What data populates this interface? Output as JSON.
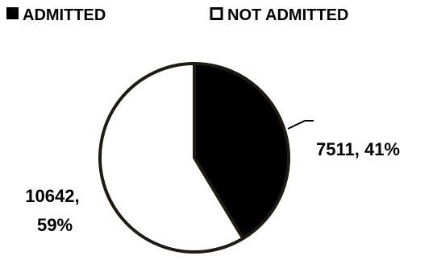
{
  "chart_data": {
    "type": "pie",
    "categories": [
      "ADMITTED",
      "NOT ADMITTED"
    ],
    "values": [
      7511,
      10642
    ],
    "percent_labels": [
      "41%",
      "59%"
    ],
    "data_labels": [
      "7511, 41%",
      "10642,\n59%"
    ],
    "colors": [
      "#000000",
      "#ffffff"
    ],
    "outline_color": "#1f1a12",
    "legend": {
      "entries": [
        "ADMITTED",
        "NOT ADMITTED"
      ],
      "position": "top"
    },
    "title": ""
  }
}
